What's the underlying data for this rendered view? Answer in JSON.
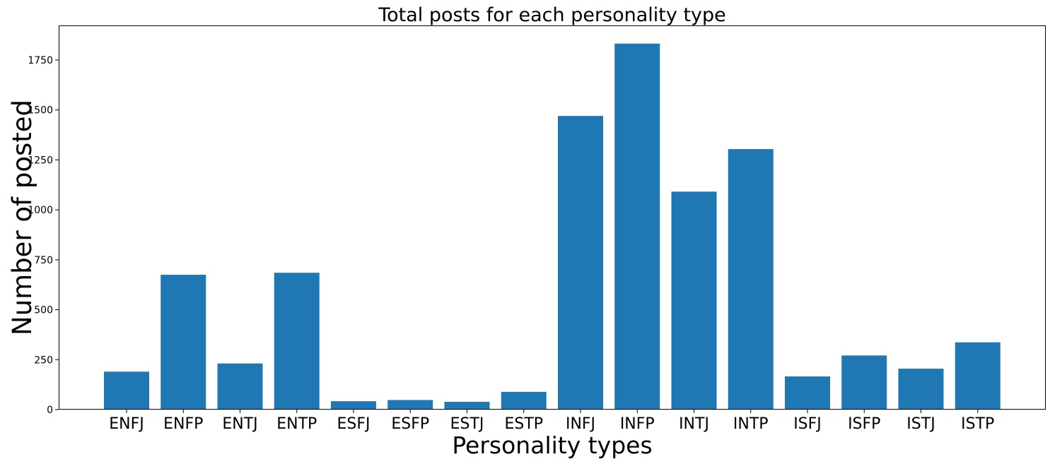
{
  "chart_data": {
    "type": "bar",
    "title": "Total posts for each personality type",
    "xlabel": "Personality types",
    "ylabel": "Number of posted",
    "categories": [
      "ENFJ",
      "ENFP",
      "ENTJ",
      "ENTP",
      "ESFJ",
      "ESFP",
      "ESTJ",
      "ESTP",
      "INFJ",
      "INFP",
      "INTJ",
      "INTP",
      "ISFJ",
      "ISFP",
      "ISTJ",
      "ISTP"
    ],
    "values": [
      190,
      675,
      231,
      685,
      42,
      48,
      39,
      89,
      1470,
      1832,
      1091,
      1304,
      166,
      271,
      205,
      337
    ],
    "yticks": [
      0,
      250,
      500,
      750,
      1000,
      1250,
      1500,
      1750
    ],
    "ylim": [
      0,
      1923
    ],
    "grid": false,
    "bar_color": "#1f77b4"
  }
}
